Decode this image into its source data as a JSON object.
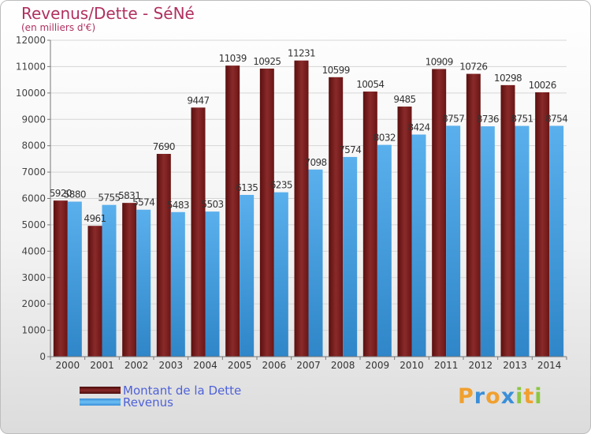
{
  "header": {
    "title": "Revenus/Dette - SéNé",
    "subtitle": "(en milliers d'€)"
  },
  "chart_data": {
    "type": "bar",
    "categories": [
      "2000",
      "2001",
      "2002",
      "2003",
      "2004",
      "2005",
      "2006",
      "2007",
      "2008",
      "2009",
      "2010",
      "2011",
      "2012",
      "2013",
      "2014"
    ],
    "series": [
      {
        "name": "Montant de la Dette",
        "color": "#7a1e1e",
        "values": [
          5920,
          4961,
          5831,
          7690,
          9447,
          11039,
          10925,
          11231,
          10599,
          10054,
          9485,
          10909,
          10726,
          10298,
          10026
        ]
      },
      {
        "name": "Revenus",
        "color": "#4aa3e0",
        "values": [
          5880,
          5755,
          5574,
          5483,
          5503,
          6135,
          6235,
          7098,
          7574,
          8032,
          8424,
          8757,
          8736,
          8751,
          8754
        ]
      }
    ],
    "data_labels": [
      [
        "5920",
        "4961",
        "5831",
        "7690",
        "9447",
        "11039",
        "10925",
        "11231",
        "10599",
        "10054",
        "9485",
        "10909",
        "10726",
        "10298",
        "10026"
      ],
      [
        "5880",
        "5755",
        "5574",
        "5483",
        "5503",
        "6135",
        "6235",
        "7098",
        "7574",
        "8032",
        "8424",
        "8757",
        "8736",
        "8751",
        "8754"
      ]
    ],
    "yticks": [
      "0",
      "1000",
      "2000",
      "3000",
      "4000",
      "5000",
      "6000",
      "7000",
      "8000",
      "9000",
      "10000",
      "11000",
      "12000"
    ],
    "ylim": [
      0,
      12000
    ],
    "grid": true,
    "legend": "bottom-left"
  },
  "legend": {
    "items": [
      {
        "label": "Montant de la Dette",
        "color": "#7a1e1e"
      },
      {
        "label": "Revenus",
        "color": "#4aa3e0"
      }
    ]
  },
  "logo": {
    "letters": [
      "P",
      "r",
      "o",
      "x",
      "i",
      "t",
      "i"
    ],
    "colors": [
      "#f0a030",
      "#3a8fd8",
      "#f0a030",
      "#3a8fd8",
      "#8cc640",
      "#f0a030",
      "#8cc640"
    ]
  }
}
